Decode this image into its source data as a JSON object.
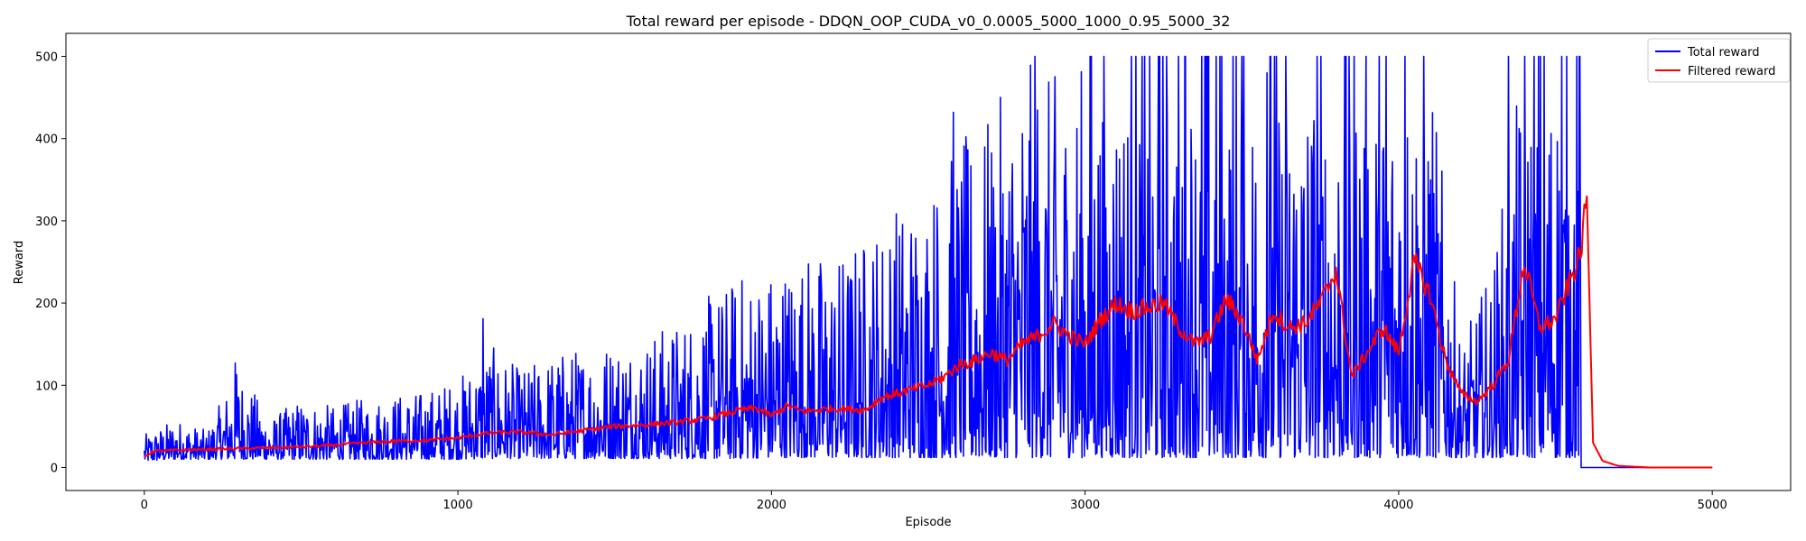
{
  "chart_data": {
    "type": "line",
    "title": "Total reward per episode - DDQN_OOP_CUDA_v0_0.0005_5000_1000_0.95_5000_32",
    "xlabel": "Episode",
    "ylabel": "Reward",
    "xlim": [
      -250,
      5250
    ],
    "ylim": [
      -28,
      528
    ],
    "xticks": [
      0,
      1000,
      2000,
      3000,
      4000,
      5000
    ],
    "yticks": [
      0,
      100,
      200,
      300,
      400,
      500
    ],
    "grid": false,
    "legend_position": "top-right",
    "series": [
      {
        "name": "Total reward",
        "color": "#0000ff",
        "style": "noisy envelope",
        "x": [
          0,
          100,
          200,
          300,
          400,
          500,
          600,
          700,
          800,
          900,
          1000,
          1100,
          1200,
          1300,
          1400,
          1500,
          1600,
          1700,
          1800,
          1900,
          2000,
          2100,
          2200,
          2300,
          2400,
          2500,
          2600,
          2700,
          2800,
          2900,
          3000,
          3100,
          3200,
          3300,
          3400,
          3500,
          3600,
          3700,
          3800,
          3900,
          4000,
          4100,
          4200,
          4300,
          4400,
          4500,
          4580,
          4600,
          4700,
          4800,
          4900,
          5000
        ],
        "low": [
          8,
          10,
          10,
          10,
          10,
          10,
          10,
          10,
          10,
          10,
          10,
          11,
          11,
          11,
          11,
          11,
          11,
          11,
          11,
          11,
          12,
          12,
          12,
          12,
          12,
          12,
          12,
          12,
          12,
          12,
          12,
          12,
          12,
          12,
          12,
          12,
          12,
          12,
          12,
          12,
          12,
          12,
          12,
          12,
          12,
          12,
          12,
          0,
          0,
          0,
          0,
          0
        ],
        "high": [
          40,
          60,
          45,
          125,
          60,
          85,
          75,
          85,
          90,
          95,
          110,
          150,
          120,
          140,
          150,
          160,
          165,
          180,
          210,
          240,
          250,
          270,
          260,
          290,
          330,
          350,
          400,
          430,
          500,
          480,
          500,
          500,
          500,
          500,
          500,
          500,
          500,
          500,
          500,
          500,
          500,
          500,
          150,
          250,
          500,
          500,
          500,
          0,
          0,
          0,
          0,
          0
        ],
        "peaks": [
          [
            290,
            127
          ],
          [
            1080,
            181
          ],
          [
            2580,
            432
          ],
          [
            2840,
            500
          ],
          [
            3320,
            500
          ],
          [
            3500,
            500
          ],
          [
            3580,
            480
          ],
          [
            3740,
            500
          ],
          [
            3960,
            500
          ],
          [
            4020,
            500
          ],
          [
            4350,
            500
          ],
          [
            4520,
            500
          ]
        ]
      },
      {
        "name": "Filtered reward",
        "color": "#ff0000",
        "x": [
          0,
          30,
          100,
          200,
          300,
          400,
          500,
          600,
          700,
          800,
          900,
          1000,
          1100,
          1200,
          1300,
          1400,
          1500,
          1600,
          1700,
          1800,
          1900,
          1950,
          2000,
          2050,
          2100,
          2200,
          2300,
          2350,
          2400,
          2450,
          2500,
          2550,
          2600,
          2650,
          2700,
          2750,
          2800,
          2850,
          2900,
          2950,
          3000,
          3050,
          3100,
          3150,
          3200,
          3250,
          3300,
          3350,
          3400,
          3450,
          3500,
          3550,
          3600,
          3650,
          3700,
          3750,
          3800,
          3850,
          3900,
          3950,
          4000,
          4050,
          4100,
          4150,
          4200,
          4250,
          4300,
          4350,
          4400,
          4450,
          4500,
          4550,
          4580,
          4600,
          4620,
          4650,
          4700,
          4800,
          4900,
          5000
        ],
        "y": [
          13,
          20,
          21,
          22,
          23,
          24,
          25,
          27,
          30,
          32,
          33,
          36,
          42,
          43,
          40,
          45,
          50,
          52,
          55,
          60,
          70,
          72,
          63,
          75,
          68,
          72,
          70,
          85,
          90,
          95,
          100,
          110,
          125,
          130,
          140,
          130,
          150,
          160,
          175,
          160,
          150,
          180,
          200,
          190,
          195,
          200,
          170,
          150,
          160,
          205,
          180,
          130,
          190,
          170,
          175,
          200,
          240,
          110,
          140,
          170,
          140,
          250,
          210,
          130,
          90,
          80,
          100,
          130,
          250,
          170,
          180,
          230,
          260,
          330,
          30,
          8,
          2,
          0,
          0,
          0
        ]
      }
    ]
  }
}
